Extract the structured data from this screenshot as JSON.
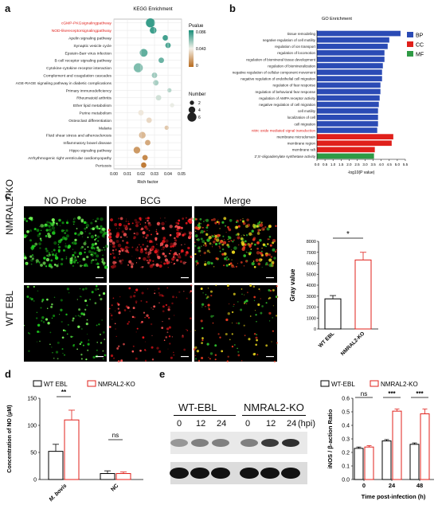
{
  "panel_labels": {
    "a": "a",
    "b": "b",
    "c": "c",
    "d": "d",
    "e": "e"
  },
  "chart_data": [
    {
      "id": "kegg",
      "type": "scatter",
      "title": "KEGG Enrichment",
      "xlabel": "Rich factor",
      "ylabel": "",
      "xlim": [
        0,
        0.05
      ],
      "xticks": [
        "0.00",
        "0.01",
        "0.02",
        "0.03",
        "0.04",
        "0.05"
      ],
      "categories": [
        "cGMP-PKGsignalingpathway",
        "NOD-likereceptorsignalingpathway",
        "Apelin signaling pathway",
        "Synaptic vesicle cycle",
        "Epstein-Barr virus infection",
        "B cell receptor signaling pathway",
        "Cytokine-cytokine receptor interaction",
        "Complement and coagulation cascades",
        "AGE-RAGE signaling pathway in diabetic complications",
        "Primary immunodeficiency",
        "Rheumatoid arthritis",
        "Ether lipid metabolism",
        "Purine metabolism",
        "Osteoclast differentiation",
        "Malaria",
        "Fluid shear stress and atherosclerosis",
        "Inflammatory bowel disease",
        "Hippo signaling pathway",
        "Arrhythmogenic right ventricular cardiomyopathy",
        "Pertussis"
      ],
      "highlight": [
        0,
        1
      ],
      "x": [
        0.027,
        0.029,
        0.038,
        0.04,
        0.022,
        0.035,
        0.018,
        0.03,
        0.031,
        0.041,
        0.033,
        0.043,
        0.02,
        0.026,
        0.039,
        0.021,
        0.025,
        0.017,
        0.023,
        0.022
      ],
      "pvalue": [
        0.08,
        0.079,
        0.078,
        0.076,
        0.072,
        0.07,
        0.066,
        0.06,
        0.058,
        0.055,
        0.05,
        0.045,
        0.04,
        0.035,
        0.03,
        0.025,
        0.02,
        0.015,
        0.01,
        0.005
      ],
      "number": [
        6,
        4,
        3,
        3,
        5,
        3,
        6,
        3,
        3,
        2,
        3,
        2,
        3,
        3,
        2,
        4,
        3,
        4,
        3,
        3
      ],
      "legend_pvalue_title": "Pvalue",
      "legend_pvalue_ticks": [
        "0.086",
        "0.043",
        "0"
      ],
      "legend_number_title": "Number",
      "legend_number_ticks": [
        "2",
        "4",
        "6"
      ],
      "color_high": "#1a8f7a",
      "color_mid": "#f4f1ea",
      "color_low": "#b86b1e"
    },
    {
      "id": "go",
      "type": "bar",
      "orientation": "horizontal",
      "title": "GO Enrichment",
      "xlabel": "-log10(P value)",
      "xlim": [
        0,
        5.5
      ],
      "xticks": [
        "0.0",
        "0.5",
        "1.0",
        "1.5",
        "2.0",
        "2.5",
        "3.0",
        "3.5",
        "4.0",
        "4.5",
        "5.0",
        "5.5"
      ],
      "categories": [
        "tissue remodeling",
        "negative regulation of cell motility",
        "regulation of ion transport",
        "regulation of locomotion",
        "regulation of biomineral tissue development",
        "regulation of biomineralization",
        "negative regulation of cellular component movement",
        "negative regulation of endothelial cell migration",
        "regulation of fear response",
        "regulation of behavioral fear response",
        "regulation of AMPA receptor activity",
        "negative regulation of cell migration",
        "cell motility",
        "localization of cell",
        "cell migration",
        "nitric oxide mediated signal transduction",
        "membrane microdomain",
        "membrane region",
        "membrane raft",
        "2',5'-oligoadenylate synthetase activity"
      ],
      "values": [
        5.2,
        4.5,
        4.4,
        4.2,
        4.2,
        4.1,
        4.05,
        4.05,
        3.95,
        3.95,
        3.9,
        3.85,
        3.8,
        3.8,
        3.8,
        3.75,
        4.75,
        4.65,
        3.6,
        3.55
      ],
      "groups": [
        "BP",
        "BP",
        "BP",
        "BP",
        "BP",
        "BP",
        "BP",
        "BP",
        "BP",
        "BP",
        "BP",
        "BP",
        "BP",
        "BP",
        "BP",
        "BP",
        "CC",
        "CC",
        "CC",
        "MF"
      ],
      "highlight": [
        15
      ],
      "legend": [
        {
          "name": "BP",
          "color": "#2b4bb5"
        },
        {
          "name": "CC",
          "color": "#e0201b"
        },
        {
          "name": "MF",
          "color": "#2f9a45"
        }
      ],
      "legend_placement": "top-right"
    },
    {
      "id": "gray",
      "type": "bar",
      "categories": [
        "WT EBL",
        "NMRAL2-KO"
      ],
      "values": [
        2750,
        6300
      ],
      "errors": [
        300,
        700
      ],
      "ylabel": "Gray value",
      "ylim": [
        0,
        8000
      ],
      "yticks": [
        "0",
        "1000",
        "2000",
        "3000",
        "4000",
        "5000",
        "6000",
        "7000",
        "8000"
      ],
      "significance": "*",
      "colors": [
        "#000000",
        "#e0201b"
      ]
    },
    {
      "id": "no_conc",
      "type": "bar",
      "categories": [
        "M. bovis",
        "NC"
      ],
      "series": [
        {
          "name": "WT EBL",
          "values": [
            52,
            11
          ],
          "errors": [
            13,
            5
          ],
          "color": "#000000"
        },
        {
          "name": "NMRAL2-KO",
          "values": [
            110,
            11
          ],
          "errors": [
            18,
            3
          ],
          "color": "#e0201b"
        }
      ],
      "ylabel": "Concentration of NO (μM)",
      "ylim": [
        0,
        150
      ],
      "yticks": [
        "0",
        "50",
        "100",
        "150"
      ],
      "significance": [
        "**",
        "ns"
      ],
      "legend_placement": "top"
    },
    {
      "id": "inos",
      "type": "bar",
      "categories": [
        "0",
        "24",
        "48"
      ],
      "series": [
        {
          "name": "WT-EBL",
          "values": [
            0.23,
            0.285,
            0.26
          ],
          "errors": [
            0.01,
            0.01,
            0.01
          ],
          "color": "#000000"
        },
        {
          "name": "NMRAL2-KO",
          "values": [
            0.24,
            0.505,
            0.485
          ],
          "errors": [
            0.01,
            0.015,
            0.035
          ],
          "color": "#e0201b"
        }
      ],
      "ylabel": "iNOS / β-action Ratio",
      "xlabel": "Time post-infection (h)",
      "ylim": [
        0,
        0.6
      ],
      "yticks": [
        "0.0",
        "0.1",
        "0.2",
        "0.3",
        "0.4",
        "0.5",
        "0.6"
      ],
      "significance": [
        "ns",
        "***",
        "***"
      ],
      "legend_placement": "top"
    }
  ],
  "micro": {
    "titles": [
      "NO Probe",
      "BCG",
      "Merge"
    ],
    "rows": [
      "NMRAL2-KO",
      "WT EBL"
    ]
  },
  "western": {
    "groups": [
      "WT-EBL",
      "NMRAL2-KO"
    ],
    "lanes": [
      "0",
      "12",
      "24",
      "0",
      "12",
      "24"
    ],
    "unit": "(hpi)",
    "band_top": [
      0.35,
      0.45,
      0.45,
      0.45,
      0.75,
      0.8
    ]
  }
}
